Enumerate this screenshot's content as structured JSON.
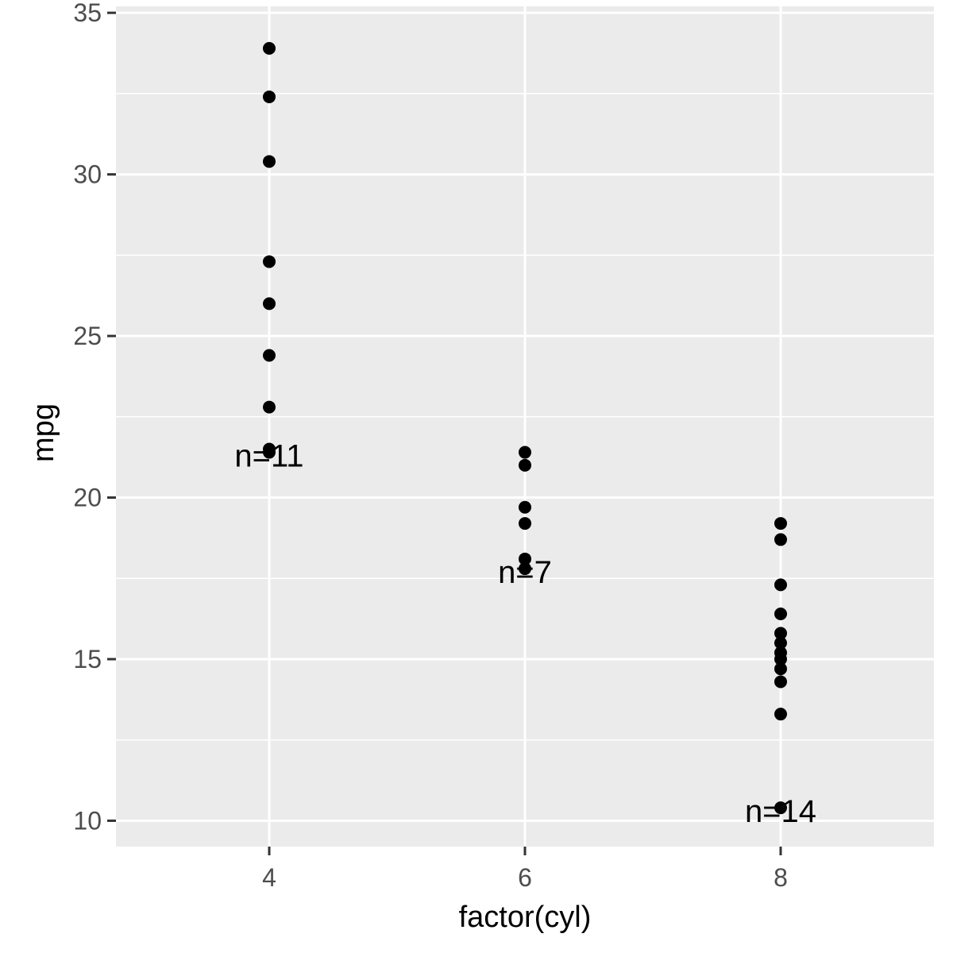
{
  "chart_data": {
    "type": "scatter",
    "xlabel": "factor(cyl)",
    "ylabel": "mpg",
    "categories": [
      "4",
      "6",
      "8"
    ],
    "ylim": [
      9.2,
      35.2
    ],
    "y_ticks": [
      "10",
      "15",
      "20",
      "25",
      "30",
      "35"
    ],
    "grid": true,
    "panel_background": "#ebebeb",
    "grid_color": "#ffffff",
    "point_color": "#000000",
    "series": [
      {
        "category": "4",
        "values": [
          33.9,
          32.4,
          30.4,
          27.3,
          26.0,
          24.4,
          22.8,
          21.5,
          21.4
        ]
      },
      {
        "category": "6",
        "values": [
          21.4,
          21.0,
          19.7,
          19.2,
          18.1,
          17.8
        ]
      },
      {
        "category": "8",
        "values": [
          19.2,
          18.7,
          17.3,
          16.4,
          15.8,
          15.5,
          15.2,
          15.0,
          14.7,
          14.3,
          13.3,
          10.4
        ]
      }
    ],
    "annotations": [
      {
        "category": "4",
        "y": 21.4,
        "text": "n=11"
      },
      {
        "category": "6",
        "y": 17.8,
        "text": "n=7"
      },
      {
        "category": "8",
        "y": 10.4,
        "text": "n=14"
      }
    ]
  }
}
